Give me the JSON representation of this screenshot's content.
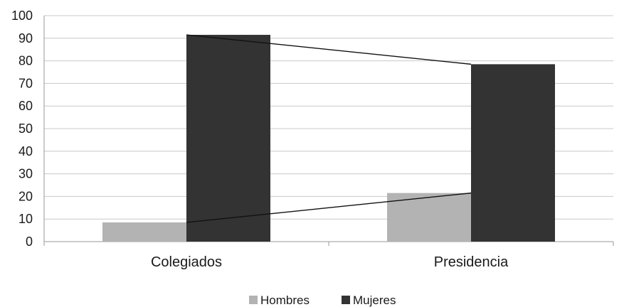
{
  "chart_data": {
    "type": "bar",
    "categories": [
      "Colegiados",
      "Presidencia"
    ],
    "series": [
      {
        "name": "Hombres",
        "values": [
          8.5,
          21.5
        ],
        "color": "#b3b3b3"
      },
      {
        "name": "Mujeres",
        "values": [
          91.5,
          78.5
        ],
        "color": "#333333"
      }
    ],
    "connector_lines": true,
    "ylim": [
      0,
      100
    ],
    "yticks": [
      0,
      10,
      20,
      30,
      40,
      50,
      60,
      70,
      80,
      90,
      100
    ],
    "grid": true,
    "legend_position": "bottom"
  }
}
